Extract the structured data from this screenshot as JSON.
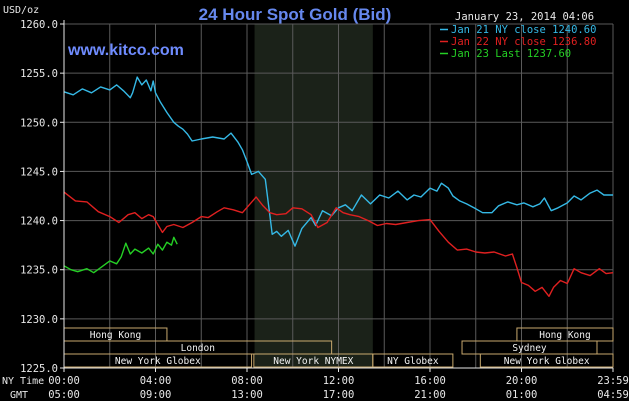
{
  "title": "24 Hour Spot Gold (Bid)",
  "unit_label": "USD/oz",
  "website": "www.kitco.com",
  "timestamp": "January 23, 2014 04:06",
  "colors": {
    "background": "#000000",
    "title": "#6688ee",
    "website": "#6f8cff",
    "axis": "#e8e8e8",
    "grid": "#5a5a5a",
    "session_shade": "#1b2219",
    "session_box_border": "#c8a96e",
    "session_text": "#f2f2f2"
  },
  "chart_data": {
    "type": "line",
    "title": "24 Hour Spot Gold (Bid)",
    "ylabel": "USD/oz",
    "ylim": [
      1225.0,
      1260.0
    ],
    "yticks": [
      "1225.0",
      "1230.0",
      "1235.0",
      "1240.0",
      "1245.0",
      "1250.0",
      "1255.0",
      "1260.0"
    ],
    "xlim": [
      0,
      24
    ],
    "xticks": [
      {
        "hour": 0,
        "ny": "00:00",
        "gmt": "05:00"
      },
      {
        "hour": 4,
        "ny": "04:00",
        "gmt": "09:00"
      },
      {
        "hour": 8,
        "ny": "08:00",
        "gmt": "13:00"
      },
      {
        "hour": 12,
        "ny": "12:00",
        "gmt": "17:00"
      },
      {
        "hour": 16,
        "ny": "16:00",
        "gmt": "21:00"
      },
      {
        "hour": 20,
        "ny": "20:00",
        "gmt": "01:00"
      },
      {
        "hour": 24,
        "ny": "23:59",
        "gmt": "04:59"
      }
    ],
    "xaxis_row_labels": {
      "ny": "NY Time",
      "gmt": "GMT"
    },
    "grid": true,
    "legend_position": "top-right",
    "shaded_session_hours": [
      8.33,
      13.5
    ],
    "series": [
      {
        "name": "Jan 21 NY close 1240.60",
        "color": "#35b9e6",
        "points": [
          [
            0,
            1253.1
          ],
          [
            0.4,
            1252.8
          ],
          [
            0.8,
            1253.4
          ],
          [
            1.2,
            1253.0
          ],
          [
            1.6,
            1253.6
          ],
          [
            2.0,
            1253.3
          ],
          [
            2.3,
            1253.8
          ],
          [
            2.6,
            1253.2
          ],
          [
            2.9,
            1252.5
          ],
          [
            3.0,
            1253.0
          ],
          [
            3.2,
            1254.6
          ],
          [
            3.4,
            1253.8
          ],
          [
            3.6,
            1254.3
          ],
          [
            3.8,
            1253.2
          ],
          [
            3.9,
            1254.2
          ],
          [
            4.0,
            1253.0
          ],
          [
            4.2,
            1252.1
          ],
          [
            4.5,
            1251.0
          ],
          [
            4.8,
            1250.0
          ],
          [
            5.0,
            1249.6
          ],
          [
            5.2,
            1249.3
          ],
          [
            5.4,
            1248.8
          ],
          [
            5.6,
            1248.1
          ],
          [
            6.0,
            1248.3
          ],
          [
            6.5,
            1248.5
          ],
          [
            7.0,
            1248.3
          ],
          [
            7.3,
            1248.9
          ],
          [
            7.6,
            1248.0
          ],
          [
            7.8,
            1247.2
          ],
          [
            8.0,
            1246.0
          ],
          [
            8.2,
            1244.7
          ],
          [
            8.5,
            1245.0
          ],
          [
            8.8,
            1244.2
          ],
          [
            9.0,
            1240.5
          ],
          [
            9.1,
            1238.6
          ],
          [
            9.3,
            1238.9
          ],
          [
            9.5,
            1238.4
          ],
          [
            9.8,
            1239.0
          ],
          [
            10.1,
            1237.4
          ],
          [
            10.4,
            1239.2
          ],
          [
            10.8,
            1240.3
          ],
          [
            11.0,
            1239.5
          ],
          [
            11.3,
            1241.0
          ],
          [
            11.7,
            1240.5
          ],
          [
            12.0,
            1241.3
          ],
          [
            12.3,
            1241.6
          ],
          [
            12.6,
            1241.0
          ],
          [
            13.0,
            1242.6
          ],
          [
            13.4,
            1241.7
          ],
          [
            13.8,
            1242.6
          ],
          [
            14.2,
            1242.3
          ],
          [
            14.6,
            1243.0
          ],
          [
            15.0,
            1242.1
          ],
          [
            15.3,
            1242.6
          ],
          [
            15.6,
            1242.4
          ],
          [
            16.0,
            1243.3
          ],
          [
            16.3,
            1243.0
          ],
          [
            16.5,
            1243.8
          ],
          [
            16.8,
            1243.3
          ],
          [
            17.0,
            1242.5
          ],
          [
            17.3,
            1242.0
          ],
          [
            17.6,
            1241.7
          ],
          [
            18.0,
            1241.2
          ],
          [
            18.3,
            1240.8
          ],
          [
            18.7,
            1240.8
          ],
          [
            19.0,
            1241.5
          ],
          [
            19.4,
            1241.9
          ],
          [
            19.8,
            1241.6
          ],
          [
            20.1,
            1241.8
          ],
          [
            20.5,
            1241.4
          ],
          [
            20.8,
            1241.7
          ],
          [
            21.0,
            1242.3
          ],
          [
            21.3,
            1241.0
          ],
          [
            21.6,
            1241.3
          ],
          [
            22.0,
            1241.8
          ],
          [
            22.3,
            1242.5
          ],
          [
            22.6,
            1242.1
          ],
          [
            23.0,
            1242.8
          ],
          [
            23.3,
            1243.1
          ],
          [
            23.6,
            1242.6
          ],
          [
            24.0,
            1242.6
          ]
        ]
      },
      {
        "name": "Jan 22 NY close 1236.80",
        "color": "#e02020",
        "points": [
          [
            0,
            1242.9
          ],
          [
            0.5,
            1242.0
          ],
          [
            1.0,
            1241.9
          ],
          [
            1.5,
            1240.9
          ],
          [
            2.0,
            1240.4
          ],
          [
            2.4,
            1239.8
          ],
          [
            2.8,
            1240.6
          ],
          [
            3.1,
            1240.8
          ],
          [
            3.4,
            1240.2
          ],
          [
            3.7,
            1240.6
          ],
          [
            3.9,
            1240.4
          ],
          [
            4.1,
            1239.6
          ],
          [
            4.3,
            1238.8
          ],
          [
            4.5,
            1239.4
          ],
          [
            4.8,
            1239.6
          ],
          [
            5.2,
            1239.3
          ],
          [
            5.6,
            1239.8
          ],
          [
            6.0,
            1240.4
          ],
          [
            6.3,
            1240.3
          ],
          [
            6.7,
            1240.9
          ],
          [
            7.0,
            1241.3
          ],
          [
            7.4,
            1241.1
          ],
          [
            7.8,
            1240.8
          ],
          [
            8.1,
            1241.6
          ],
          [
            8.4,
            1242.4
          ],
          [
            8.7,
            1241.5
          ],
          [
            9.0,
            1240.8
          ],
          [
            9.3,
            1240.6
          ],
          [
            9.7,
            1240.7
          ],
          [
            10.0,
            1241.3
          ],
          [
            10.4,
            1241.2
          ],
          [
            10.8,
            1240.6
          ],
          [
            11.1,
            1239.3
          ],
          [
            11.5,
            1239.8
          ],
          [
            11.9,
            1241.3
          ],
          [
            12.2,
            1240.8
          ],
          [
            12.5,
            1240.6
          ],
          [
            12.9,
            1240.4
          ],
          [
            13.3,
            1240.0
          ],
          [
            13.7,
            1239.5
          ],
          [
            14.1,
            1239.7
          ],
          [
            14.5,
            1239.6
          ],
          [
            15.0,
            1239.8
          ],
          [
            15.5,
            1240.0
          ],
          [
            16.0,
            1240.1
          ],
          [
            16.4,
            1238.9
          ],
          [
            16.8,
            1237.8
          ],
          [
            17.2,
            1237.0
          ],
          [
            17.6,
            1237.1
          ],
          [
            18.0,
            1236.8
          ],
          [
            18.4,
            1236.7
          ],
          [
            18.8,
            1236.8
          ],
          [
            19.3,
            1236.4
          ],
          [
            19.6,
            1236.6
          ],
          [
            19.8,
            1235.2
          ],
          [
            20.0,
            1233.7
          ],
          [
            20.3,
            1233.4
          ],
          [
            20.6,
            1232.8
          ],
          [
            20.9,
            1233.2
          ],
          [
            21.2,
            1232.3
          ],
          [
            21.4,
            1233.2
          ],
          [
            21.7,
            1233.9
          ],
          [
            22.0,
            1233.6
          ],
          [
            22.3,
            1235.1
          ],
          [
            22.6,
            1234.7
          ],
          [
            23.0,
            1234.4
          ],
          [
            23.4,
            1235.1
          ],
          [
            23.7,
            1234.6
          ],
          [
            24.0,
            1234.7
          ]
        ]
      },
      {
        "name": "Jan 23 Last 1237.60",
        "color": "#25d025",
        "points": [
          [
            0,
            1235.4
          ],
          [
            0.3,
            1235.0
          ],
          [
            0.6,
            1234.8
          ],
          [
            1.0,
            1235.1
          ],
          [
            1.3,
            1234.7
          ],
          [
            1.6,
            1235.2
          ],
          [
            2.0,
            1235.9
          ],
          [
            2.3,
            1235.6
          ],
          [
            2.5,
            1236.3
          ],
          [
            2.7,
            1237.7
          ],
          [
            2.9,
            1236.6
          ],
          [
            3.1,
            1237.1
          ],
          [
            3.4,
            1236.7
          ],
          [
            3.7,
            1237.2
          ],
          [
            3.9,
            1236.6
          ],
          [
            4.1,
            1237.6
          ],
          [
            4.3,
            1237.0
          ],
          [
            4.5,
            1237.8
          ],
          [
            4.7,
            1237.5
          ],
          [
            4.8,
            1238.3
          ],
          [
            4.95,
            1237.6
          ]
        ]
      }
    ],
    "sessions": [
      {
        "name": "Hong Kong",
        "start": 0,
        "end": 4.5,
        "row": 0
      },
      {
        "name": "Hong Kong",
        "start": 19.8,
        "end": 24.0,
        "row": 0
      },
      {
        "name": "London",
        "start": 0,
        "end": 11.7,
        "row": 1
      },
      {
        "name": "Sydney",
        "start": 17.4,
        "end": 23.3,
        "row": 1
      },
      {
        "name": "New York Globex",
        "start": 0,
        "end": 8.2,
        "row": 2
      },
      {
        "name": "New York NYMEX",
        "start": 8.3,
        "end": 13.5,
        "row": 2
      },
      {
        "name": "NY Globex",
        "start": 13.5,
        "end": 17.0,
        "row": 2
      },
      {
        "name": "New York Globex",
        "start": 18.2,
        "end": 24.0,
        "row": 2
      }
    ]
  }
}
